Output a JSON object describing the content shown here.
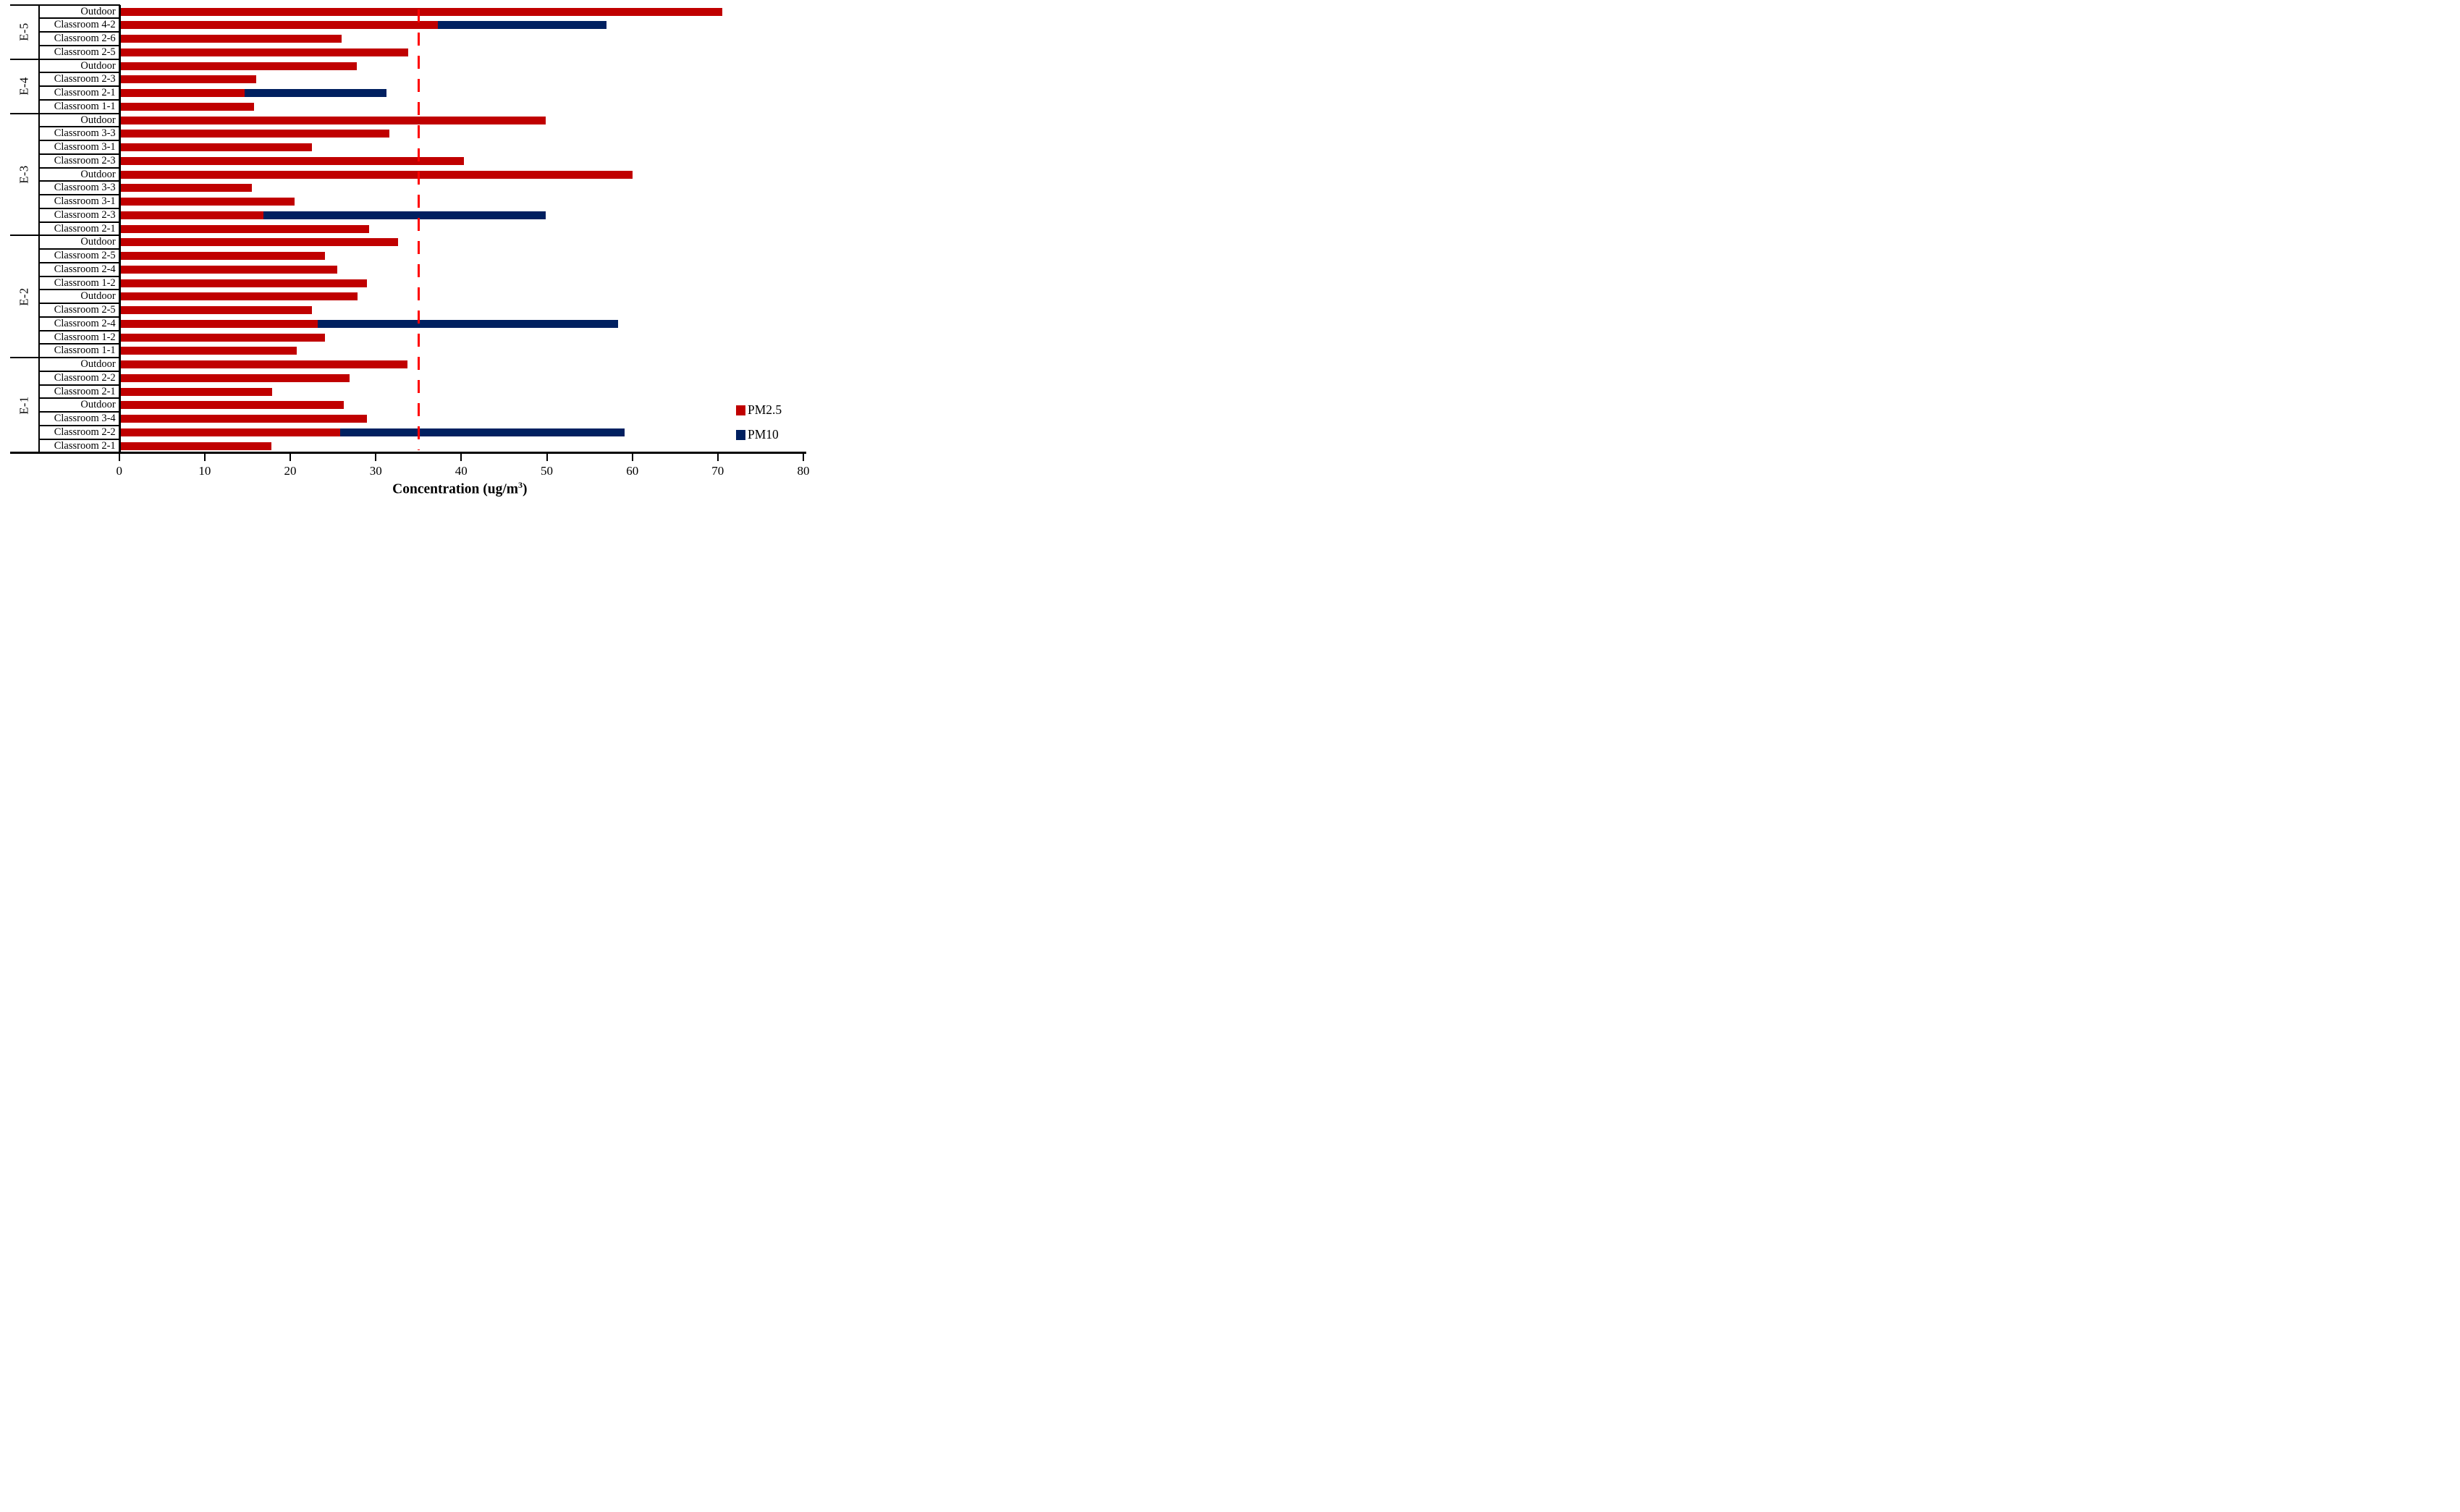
{
  "chart_data": {
    "type": "bar",
    "orientation": "horizontal",
    "title": "",
    "xlabel_parts": {
      "base": "Concentration (ug/m",
      "sup": "3",
      "end": ")"
    },
    "xlim": [
      0,
      80
    ],
    "xticks": [
      0,
      10,
      20,
      30,
      40,
      50,
      60,
      70,
      80
    ],
    "grid": false,
    "guideline": {
      "value": 35,
      "color": "#FF0000",
      "style": "dashed-vertical"
    },
    "legend_position": "lower-right",
    "legend": [
      {
        "label": "PM2.5",
        "color": "#C00000"
      },
      {
        "label": "PM10",
        "color": "#002060"
      }
    ],
    "stacking_note": "PM10 segment drawn from the PM2.5 value out to the PM10 value on rows where PM10 is shown",
    "groups": [
      {
        "name": "E-5",
        "rows": [
          {
            "label": "Outdoor",
            "pm25": 70.5
          },
          {
            "label": "Classroom 4-2",
            "pm25": 37.3,
            "pm10": 57.0
          },
          {
            "label": "Classroom 2-6",
            "pm25": 26.0
          },
          {
            "label": "Classroom 2-5",
            "pm25": 33.8
          }
        ]
      },
      {
        "name": "E-4",
        "rows": [
          {
            "label": "Outdoor",
            "pm25": 27.8
          },
          {
            "label": "Classroom 2-3",
            "pm25": 16.0
          },
          {
            "label": "Classroom 2-1",
            "pm25": 14.7,
            "pm10": 31.3
          },
          {
            "label": "Classroom 1-1",
            "pm25": 15.8
          }
        ]
      },
      {
        "name": "E-3",
        "rows": [
          {
            "label": "Outdoor",
            "pm25": 49.9
          },
          {
            "label": "Classroom 3-3",
            "pm25": 31.6
          },
          {
            "label": "Classroom 3-1",
            "pm25": 22.5
          },
          {
            "label": "Classroom 2-3",
            "pm25": 40.3
          },
          {
            "label": "Outdoor",
            "pm25": 60.0
          },
          {
            "label": "Classroom 3-3",
            "pm25": 15.5
          },
          {
            "label": "Classroom 3-1",
            "pm25": 20.5
          },
          {
            "label": "Classroom 2-3",
            "pm25": 16.9,
            "pm10": 49.9
          },
          {
            "label": "Classroom 2-1",
            "pm25": 29.2
          }
        ]
      },
      {
        "name": "E-2",
        "rows": [
          {
            "label": "Outdoor",
            "pm25": 32.6
          },
          {
            "label": "Classroom 2-5",
            "pm25": 24.1
          },
          {
            "label": "Classroom 2-4",
            "pm25": 25.5
          },
          {
            "label": "Classroom 1-2",
            "pm25": 29.0
          },
          {
            "label": "Outdoor",
            "pm25": 27.9
          },
          {
            "label": "Classroom 2-5",
            "pm25": 22.5
          },
          {
            "label": "Classroom 2-4",
            "pm25": 23.2,
            "pm10": 58.3
          },
          {
            "label": "Classroom 1-2",
            "pm25": 24.1
          },
          {
            "label": "Classroom 1-1",
            "pm25": 20.8
          }
        ]
      },
      {
        "name": "E-1",
        "rows": [
          {
            "label": "Outdoor",
            "pm25": 33.7
          },
          {
            "label": "Classroom 2-2",
            "pm25": 26.9
          },
          {
            "label": "Classroom 2-1",
            "pm25": 17.9
          },
          {
            "label": "Outdoor",
            "pm25": 26.3
          },
          {
            "label": "Classroom 3-4",
            "pm25": 29.0
          },
          {
            "label": "Classroom 2-2",
            "pm25": 25.8,
            "pm10": 59.1
          },
          {
            "label": "Classroom 2-1",
            "pm25": 17.8
          }
        ]
      }
    ]
  },
  "colors": {
    "pm25": "#C00000",
    "pm10": "#002060",
    "guideline": "#FF0000",
    "axis": "#000000",
    "background": "#FFFFFF"
  }
}
